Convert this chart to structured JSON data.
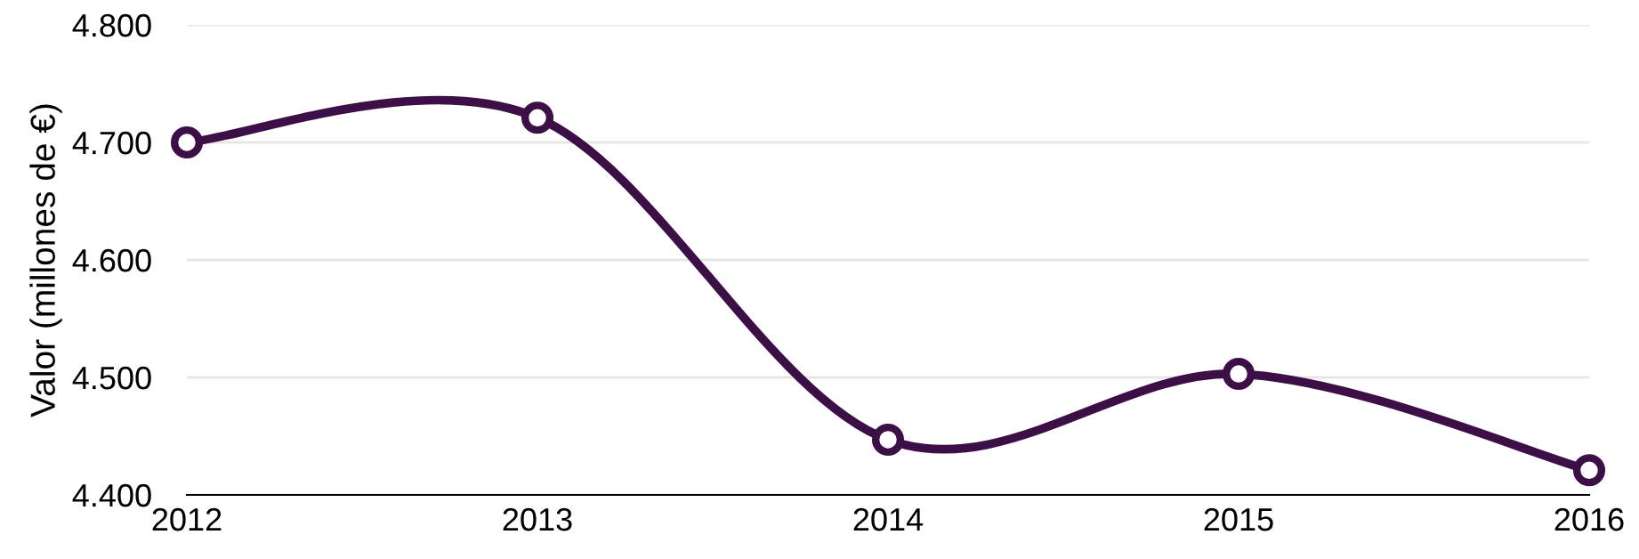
{
  "chart_data": {
    "type": "line",
    "ylabel": "Valor (millones de €)",
    "x": [
      2012,
      2013,
      2014,
      2015,
      2016
    ],
    "series": [
      {
        "color": "#3d0f47",
        "values": [
          4700,
          4721,
          4447,
          4503,
          4421
        ]
      }
    ],
    "xlim": [
      2012,
      2016
    ],
    "xticks": [
      2012,
      2013,
      2014,
      2015,
      2016
    ],
    "ylim": [
      4400,
      4800
    ],
    "yticks": [
      {
        "value": 4400,
        "label": "4.400"
      },
      {
        "value": 4500,
        "label": "4.500"
      },
      {
        "value": 4600,
        "label": "4.600"
      },
      {
        "value": 4700,
        "label": "4.700"
      },
      {
        "value": 4800,
        "label": "4.800"
      }
    ],
    "grid": "y",
    "marker": "circle",
    "line_style": "solid"
  }
}
